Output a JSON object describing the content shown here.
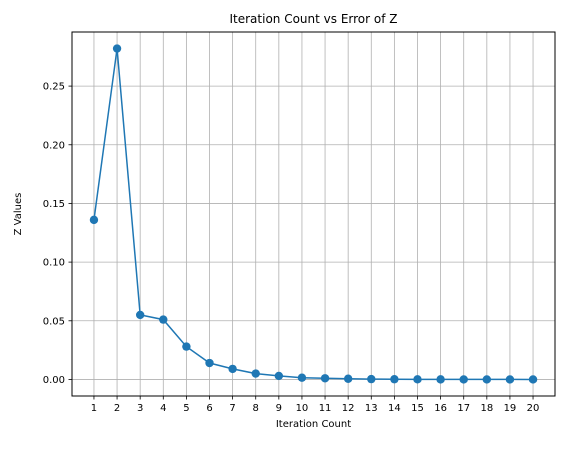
{
  "chart_data": {
    "type": "line",
    "title": "Iteration Count vs Error of Z",
    "xlabel": "Iteration Count",
    "ylabel": "Z Values",
    "grid": true,
    "marker": "circle",
    "colors": {
      "series": "#1f77b4",
      "grid": "#b0b0b0",
      "axis": "#000000"
    },
    "x": [
      1,
      2,
      3,
      4,
      5,
      6,
      7,
      8,
      9,
      10,
      11,
      12,
      13,
      14,
      15,
      16,
      17,
      18,
      19,
      20
    ],
    "xticks": [
      "1",
      "2",
      "3",
      "4",
      "5",
      "6",
      "7",
      "8",
      "9",
      "10",
      "11",
      "12",
      "13",
      "14",
      "15",
      "16",
      "17",
      "18",
      "19",
      "20"
    ],
    "series": [
      {
        "values": [
          0.136,
          0.282,
          0.055,
          0.051,
          0.028,
          0.014,
          0.009,
          0.005,
          0.003,
          0.0015,
          0.001,
          0.0006,
          0.0003,
          0.0002,
          0.0001,
          7e-05,
          4e-05,
          3e-05,
          2e-05,
          1e-05
        ]
      }
    ],
    "yticks": [
      "0.00",
      "0.05",
      "0.10",
      "0.15",
      "0.20",
      "0.25"
    ],
    "ytick_values": [
      0,
      0.05,
      0.1,
      0.15,
      0.2,
      0.25
    ],
    "xlim": [
      0.05,
      20.95
    ],
    "ylim": [
      -0.0141,
      0.2961
    ]
  }
}
